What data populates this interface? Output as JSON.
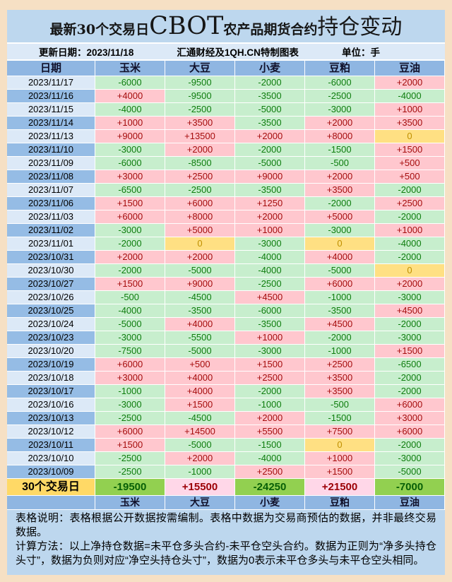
{
  "header": {
    "title_parts": [
      "最新30个交易日",
      "CBOT",
      "农产品期货合约",
      "持仓变动"
    ],
    "update_label": "更新日期：2023/11/18",
    "source_label": "汇通财经及1QH.CN特制图表",
    "unit_label": "单位：手"
  },
  "chart_data": {
    "type": "table",
    "title": "最新30个交易日CBOT农产品期货合约持仓变动",
    "updated": "2023/11/18",
    "unit": "手",
    "columns": [
      "日期",
      "玉米",
      "大豆",
      "小麦",
      "豆粕",
      "豆油"
    ],
    "rows": [
      {
        "date": "2023/11/17",
        "values": [
          "-6000",
          "-9500",
          "-2000",
          "-6000",
          "+2000"
        ]
      },
      {
        "date": "2023/11/16",
        "values": [
          "+4000",
          "-9500",
          "-3500",
          "-2500",
          "-4000"
        ]
      },
      {
        "date": "2023/11/15",
        "values": [
          "-4000",
          "-2500",
          "-5000",
          "-3000",
          "+1000"
        ]
      },
      {
        "date": "2023/11/14",
        "values": [
          "+1000",
          "+3500",
          "-3500",
          "+2000",
          "+3500"
        ]
      },
      {
        "date": "2023/11/13",
        "values": [
          "+9000",
          "+13500",
          "+2000",
          "+8000",
          "0"
        ]
      },
      {
        "date": "2023/11/10",
        "values": [
          "-3000",
          "+2000",
          "-2000",
          "-1500",
          "+1500"
        ]
      },
      {
        "date": "2023/11/09",
        "values": [
          "-6000",
          "-8500",
          "-5000",
          "-500",
          "+500"
        ]
      },
      {
        "date": "2023/11/08",
        "values": [
          "+3000",
          "+2500",
          "+9000",
          "+2000",
          "+500"
        ]
      },
      {
        "date": "2023/11/07",
        "values": [
          "-6500",
          "-2500",
          "-3500",
          "+3500",
          "-2000"
        ]
      },
      {
        "date": "2023/11/06",
        "values": [
          "+1500",
          "+6000",
          "+1250",
          "-2000",
          "+2500"
        ]
      },
      {
        "date": "2023/11/03",
        "values": [
          "+6000",
          "+8000",
          "+2000",
          "+5000",
          "-2000"
        ]
      },
      {
        "date": "2023/11/02",
        "values": [
          "-3000",
          "+5000",
          "+1000",
          "-3000",
          "+1000"
        ]
      },
      {
        "date": "2023/11/01",
        "values": [
          "-2000",
          "0",
          "-3000",
          "0",
          "-4000"
        ]
      },
      {
        "date": "2023/10/31",
        "values": [
          "+2000",
          "+2000",
          "-4000",
          "+4000",
          "-2000"
        ]
      },
      {
        "date": "2023/10/30",
        "values": [
          "-2000",
          "-5000",
          "-4000",
          "-5000",
          "0"
        ]
      },
      {
        "date": "2023/10/27",
        "values": [
          "+1500",
          "+9000",
          "-2500",
          "+6000",
          "+2000"
        ]
      },
      {
        "date": "2023/10/26",
        "values": [
          "-500",
          "-4500",
          "+4500",
          "-1000",
          "-3000"
        ]
      },
      {
        "date": "2023/10/25",
        "values": [
          "-4000",
          "-3500",
          "-6000",
          "-3500",
          "+4500"
        ]
      },
      {
        "date": "2023/10/24",
        "values": [
          "-5000",
          "+4000",
          "-3500",
          "+4500",
          "-2000"
        ]
      },
      {
        "date": "2023/10/23",
        "values": [
          "-3000",
          "-5500",
          "+1000",
          "-2000",
          "-3000"
        ]
      },
      {
        "date": "2023/10/20",
        "values": [
          "-7500",
          "-5000",
          "-3000",
          "-1000",
          "+1500"
        ]
      },
      {
        "date": "2023/10/19",
        "values": [
          "+6000",
          "+500",
          "+1500",
          "+2500",
          "-6500"
        ]
      },
      {
        "date": "2023/10/18",
        "values": [
          "+3000",
          "+4000",
          "+2500",
          "+3500",
          "-2000"
        ]
      },
      {
        "date": "2023/10/17",
        "values": [
          "-1000",
          "+4000",
          "-2000",
          "+3500",
          "-2000"
        ]
      },
      {
        "date": "2023/10/16",
        "values": [
          "-3000",
          "+1500",
          "-1000",
          "-500",
          "+6000"
        ]
      },
      {
        "date": "2023/10/13",
        "values": [
          "-2500",
          "-4500",
          "+2000",
          "-1500",
          "+3000"
        ]
      },
      {
        "date": "2023/10/12",
        "values": [
          "+6000",
          "+14500",
          "+5500",
          "+7500",
          "+6000"
        ]
      },
      {
        "date": "2023/10/11",
        "values": [
          "+1500",
          "-5000",
          "-1500",
          "0",
          "-2000"
        ]
      },
      {
        "date": "2023/10/10",
        "values": [
          "-2500",
          "+2000",
          "-4000",
          "+1000",
          "-3000"
        ]
      },
      {
        "date": "2023/10/09",
        "values": [
          "-2500",
          "-1000",
          "+2500",
          "+1500",
          "-5000"
        ]
      }
    ],
    "summary": {
      "label": "30个交易日",
      "values": [
        "-19500",
        "+15500",
        "-24250",
        "+21500",
        "-7000"
      ]
    },
    "footer_columns": [
      "玉米",
      "大豆",
      "小麦",
      "豆粕",
      "豆油"
    ]
  },
  "notes": [
    "表格说明：表格根据公开数据按需编制。表格中数据为交易商预估的数据，并非最终交易数据。",
    "计算方法：以上净持仓数据=未平仓多头合约-未平仓空头合约。数据为正则为“净多头持仓头寸”，数据为负则对应“净空头持仓头寸”，数据为0表示未平仓多头与未平仓空头相同。"
  ],
  "colors": {
    "positive_bg": "#FFC7CE",
    "positive_text": "#A50D0D",
    "negative_bg": "#C7EECD",
    "negative_text": "#0E7D0E",
    "zero_bg": "#FFE083",
    "zero_text": "#BF8F00",
    "summary_positive_bg": "#FFD7E8",
    "summary_negative_bg": "#92D050",
    "summary_label_bg": "#FFD966",
    "header_bg": "#8FB6E2",
    "date_row_light_bg": "#DCE9F7",
    "date_row_dark_bg": "#95BCE5",
    "panel_bg": "#BDD7EE",
    "frame_bg": "#F6E0C4"
  }
}
